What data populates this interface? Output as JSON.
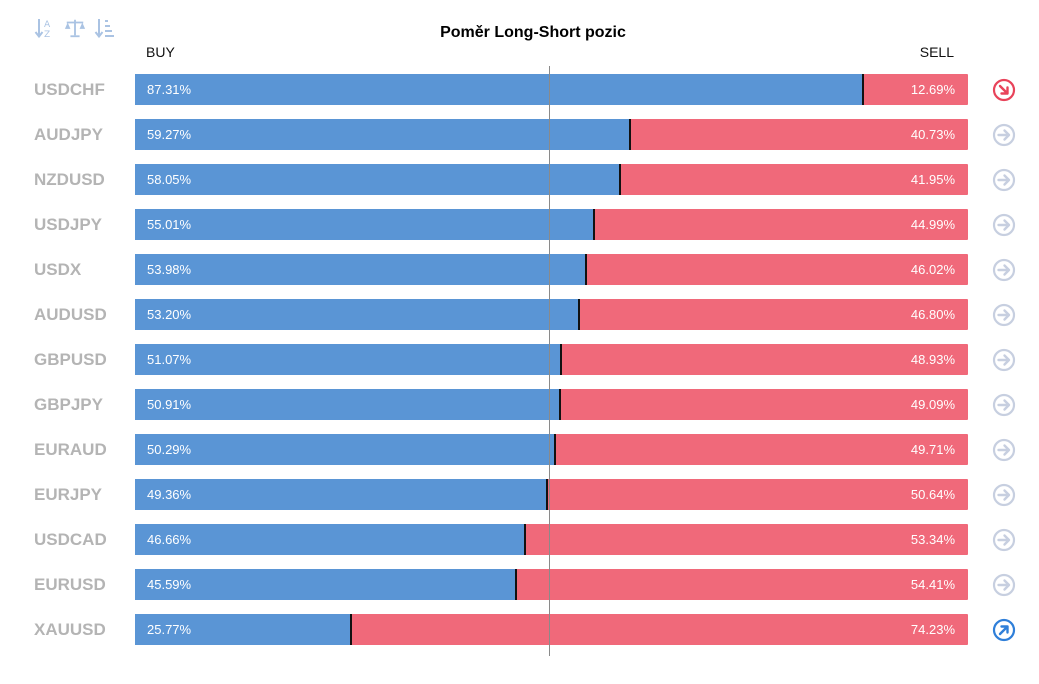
{
  "title": "Poměr Long-Short pozic",
  "buy_label": "BUY",
  "sell_label": "SELL",
  "toolbar": {
    "icons": [
      "sort-alpha-icon",
      "balance-icon",
      "sort-descending-icon"
    ]
  },
  "colors": {
    "buy": "#5a95d5",
    "sell": "#f0697a",
    "symbol_text": "#b4b4b4",
    "trend_neutral": "#c7cfe0",
    "trend_down": "#e8435a",
    "trend_up": "#2f7fd9"
  },
  "chart_data": {
    "type": "bar",
    "stacked": true,
    "orientation": "horizontal",
    "title": "Poměr Long-Short pozic",
    "categories": [
      "USDCHF",
      "AUDJPY",
      "NZDUSD",
      "USDJPY",
      "USDX",
      "AUDUSD",
      "GBPUSD",
      "GBPJPY",
      "EURAUD",
      "EURJPY",
      "USDCAD",
      "EURUSD",
      "XAUUSD"
    ],
    "series": [
      {
        "name": "BUY",
        "values": [
          87.31,
          59.27,
          58.05,
          55.01,
          53.98,
          53.2,
          51.07,
          50.91,
          50.29,
          49.36,
          46.66,
          45.59,
          25.77
        ]
      },
      {
        "name": "SELL",
        "values": [
          12.69,
          40.73,
          41.95,
          44.99,
          46.02,
          46.8,
          48.93,
          49.09,
          49.71,
          50.64,
          53.34,
          54.41,
          74.23
        ]
      }
    ],
    "xlim": [
      0,
      100
    ],
    "unit": "%",
    "reference_line": 50
  },
  "rows": [
    {
      "symbol": "USDCHF",
      "buy": "87.31%",
      "sell": "12.69%",
      "buy_value": 87.31,
      "trend": "down"
    },
    {
      "symbol": "AUDJPY",
      "buy": "59.27%",
      "sell": "40.73%",
      "buy_value": 59.27,
      "trend": "neutral"
    },
    {
      "symbol": "NZDUSD",
      "buy": "58.05%",
      "sell": "41.95%",
      "buy_value": 58.05,
      "trend": "neutral"
    },
    {
      "symbol": "USDJPY",
      "buy": "55.01%",
      "sell": "44.99%",
      "buy_value": 55.01,
      "trend": "neutral"
    },
    {
      "symbol": "USDX",
      "buy": "53.98%",
      "sell": "46.02%",
      "buy_value": 53.98,
      "trend": "neutral"
    },
    {
      "symbol": "AUDUSD",
      "buy": "53.20%",
      "sell": "46.80%",
      "buy_value": 53.2,
      "trend": "neutral"
    },
    {
      "symbol": "GBPUSD",
      "buy": "51.07%",
      "sell": "48.93%",
      "buy_value": 51.07,
      "trend": "neutral"
    },
    {
      "symbol": "GBPJPY",
      "buy": "50.91%",
      "sell": "49.09%",
      "buy_value": 50.91,
      "trend": "neutral"
    },
    {
      "symbol": "EURAUD",
      "buy": "50.29%",
      "sell": "49.71%",
      "buy_value": 50.29,
      "trend": "neutral"
    },
    {
      "symbol": "EURJPY",
      "buy": "49.36%",
      "sell": "50.64%",
      "buy_value": 49.36,
      "trend": "neutral"
    },
    {
      "symbol": "USDCAD",
      "buy": "46.66%",
      "sell": "53.34%",
      "buy_value": 46.66,
      "trend": "neutral"
    },
    {
      "symbol": "EURUSD",
      "buy": "45.59%",
      "sell": "54.41%",
      "buy_value": 45.59,
      "trend": "neutral"
    },
    {
      "symbol": "XAUUSD",
      "buy": "25.77%",
      "sell": "74.23%",
      "buy_value": 25.77,
      "trend": "up"
    }
  ]
}
